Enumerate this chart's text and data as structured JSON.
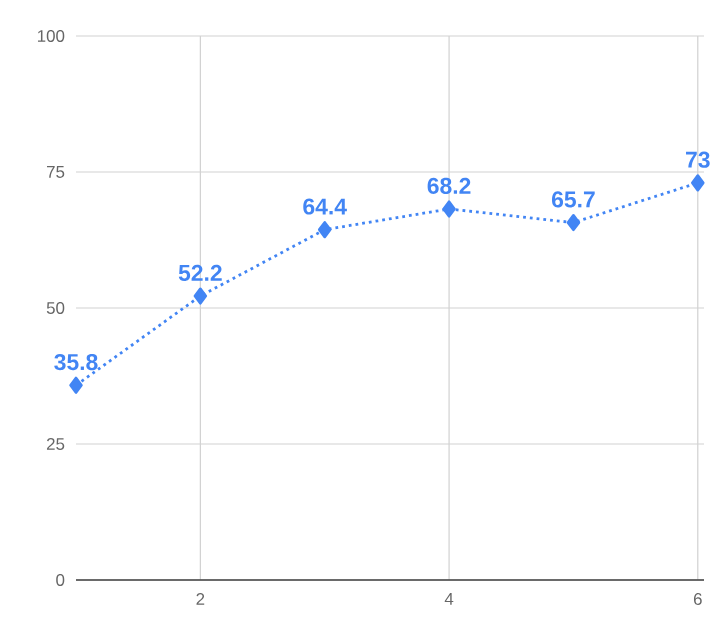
{
  "chart_data": {
    "type": "line",
    "x": [
      1,
      2,
      3,
      4,
      5,
      6
    ],
    "series": [
      {
        "color": "#4285f4",
        "values": [
          35.8,
          52.2,
          64.4,
          68.2,
          65.7,
          73
        ]
      }
    ],
    "xlim": [
      1,
      6.05
    ],
    "ylim": [
      0,
      100
    ],
    "xticks": [
      2,
      4,
      6
    ],
    "yticks": [
      0,
      25,
      50,
      75,
      100
    ],
    "grid": true,
    "marker": "diamond",
    "line_style": "dotted",
    "data_labels": true
  }
}
